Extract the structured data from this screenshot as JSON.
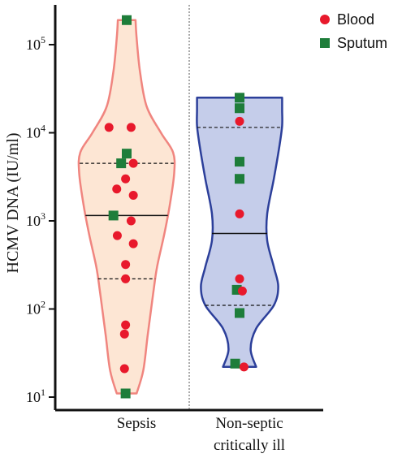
{
  "chart_data": {
    "type": "violin",
    "title": "",
    "xlabel": "",
    "ylabel": "HCMV DNA (IU/ml)",
    "yscale": "log",
    "ylim": [
      10,
      250000
    ],
    "y_ticks": [
      {
        "value": 10,
        "base": "10",
        "exp": "1"
      },
      {
        "value": 100,
        "base": "10",
        "exp": "2"
      },
      {
        "value": 1000,
        "base": "10",
        "exp": "3"
      },
      {
        "value": 10000,
        "base": "10",
        "exp": "4"
      },
      {
        "value": 100000,
        "base": "10",
        "exp": "5"
      }
    ],
    "categories": [
      {
        "label_lines": [
          "Sepsis"
        ]
      },
      {
        "label_lines": [
          "Non-septic",
          "critically ill"
        ]
      }
    ],
    "legend_position": "top-right",
    "legend": [
      {
        "label": "Blood",
        "marker": "circle",
        "color": "#e8192c"
      },
      {
        "label": "Sputum",
        "marker": "square",
        "color": "#1e7d3a"
      }
    ],
    "groups": [
      {
        "fill": "#fde6d4",
        "stroke": "#f0857f",
        "median": 1150,
        "q1": 220,
        "q3": 4500,
        "profile": [
          [
            11,
            0.18
          ],
          [
            20,
            0.3
          ],
          [
            50,
            0.38
          ],
          [
            150,
            0.48
          ],
          [
            300,
            0.55
          ],
          [
            700,
            0.68
          ],
          [
            1500,
            0.78
          ],
          [
            3500,
            0.86
          ],
          [
            6000,
            0.84
          ],
          [
            10000,
            0.62
          ],
          [
            20000,
            0.36
          ],
          [
            50000,
            0.24
          ],
          [
            120000,
            0.18
          ],
          [
            190000,
            0.16
          ]
        ],
        "points": [
          {
            "series": "Sputum",
            "value": 190000,
            "offset": 0.0
          },
          {
            "series": "Blood",
            "value": 11500,
            "offset": -0.32
          },
          {
            "series": "Blood",
            "value": 11500,
            "offset": 0.08
          },
          {
            "series": "Sputum",
            "value": 5800,
            "offset": 0.0
          },
          {
            "series": "Sputum",
            "value": 4500,
            "offset": -0.1
          },
          {
            "series": "Blood",
            "value": 4500,
            "offset": 0.12
          },
          {
            "series": "Blood",
            "value": 3000,
            "offset": -0.02
          },
          {
            "series": "Blood",
            "value": 2300,
            "offset": -0.18
          },
          {
            "series": "Blood",
            "value": 1950,
            "offset": 0.12
          },
          {
            "series": "Sputum",
            "value": 1150,
            "offset": -0.24
          },
          {
            "series": "Blood",
            "value": 1000,
            "offset": 0.08
          },
          {
            "series": "Blood",
            "value": 680,
            "offset": -0.17
          },
          {
            "series": "Blood",
            "value": 550,
            "offset": 0.12
          },
          {
            "series": "Blood",
            "value": 320,
            "offset": -0.02
          },
          {
            "series": "Blood",
            "value": 220,
            "offset": -0.02
          },
          {
            "series": "Blood",
            "value": 66,
            "offset": -0.02
          },
          {
            "series": "Blood",
            "value": 52,
            "offset": -0.04
          },
          {
            "series": "Blood",
            "value": 21,
            "offset": -0.04
          },
          {
            "series": "Sputum",
            "value": 11,
            "offset": -0.02
          }
        ]
      },
      {
        "fill": "#c5cdea",
        "stroke": "#2c3f9a",
        "median": 720,
        "q1": 110,
        "q3": 11500,
        "profile": [
          [
            22,
            0.3
          ],
          [
            35,
            0.2
          ],
          [
            60,
            0.3
          ],
          [
            110,
            0.62
          ],
          [
            180,
            0.7
          ],
          [
            300,
            0.62
          ],
          [
            600,
            0.5
          ],
          [
            1200,
            0.5
          ],
          [
            3000,
            0.62
          ],
          [
            7000,
            0.72
          ],
          [
            12000,
            0.77
          ],
          [
            18000,
            0.77
          ],
          [
            25000,
            0.77
          ]
        ],
        "points": [
          {
            "series": "Sputum",
            "value": 25000,
            "offset": 0.0
          },
          {
            "series": "Sputum",
            "value": 19000,
            "offset": 0.0
          },
          {
            "series": "Blood",
            "value": 13500,
            "offset": 0.0
          },
          {
            "series": "Sputum",
            "value": 4700,
            "offset": 0.0
          },
          {
            "series": "Sputum",
            "value": 3000,
            "offset": 0.0
          },
          {
            "series": "Blood",
            "value": 1200,
            "offset": 0.0
          },
          {
            "series": "Blood",
            "value": 220,
            "offset": 0.0
          },
          {
            "series": "Sputum",
            "value": 165,
            "offset": -0.05
          },
          {
            "series": "Blood",
            "value": 160,
            "offset": 0.05
          },
          {
            "series": "Sputum",
            "value": 90,
            "offset": 0.0
          },
          {
            "series": "Sputum",
            "value": 24,
            "offset": -0.08
          },
          {
            "series": "Blood",
            "value": 22,
            "offset": 0.08
          }
        ]
      }
    ]
  }
}
